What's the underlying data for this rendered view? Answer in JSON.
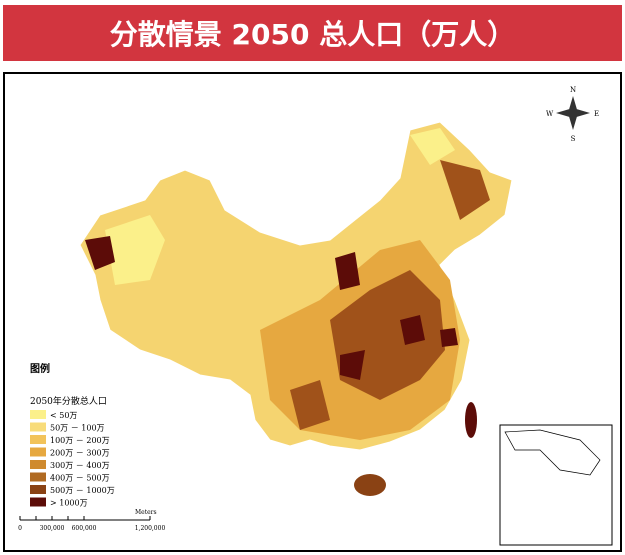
{
  "header": {
    "title": "分散情景 2050 总人口（万人）"
  },
  "compass": {
    "n": "N",
    "s": "S",
    "e": "E",
    "w": "W"
  },
  "legend": {
    "title": "图例",
    "subtitle": "2050年分散总人口",
    "items": [
      {
        "label": "< 50万",
        "color": "#fbf08a"
      },
      {
        "label": "50万 － 100万",
        "color": "#f8dc7a"
      },
      {
        "label": "100万 － 200万",
        "color": "#f2c35a"
      },
      {
        "label": "200万 － 300万",
        "color": "#e6a840"
      },
      {
        "label": "300万 － 400万",
        "color": "#cf8a2e"
      },
      {
        "label": "400万 － 500万",
        "color": "#b06a22"
      },
      {
        "label": "500万 － 1000万",
        "color": "#8a4214"
      },
      {
        "label": "> 1000万",
        "color": "#5c0c08"
      }
    ]
  },
  "scale_bar": {
    "labels": [
      "0",
      "300,000",
      "600,000",
      "1,200,000"
    ],
    "unit": "Meters"
  }
}
